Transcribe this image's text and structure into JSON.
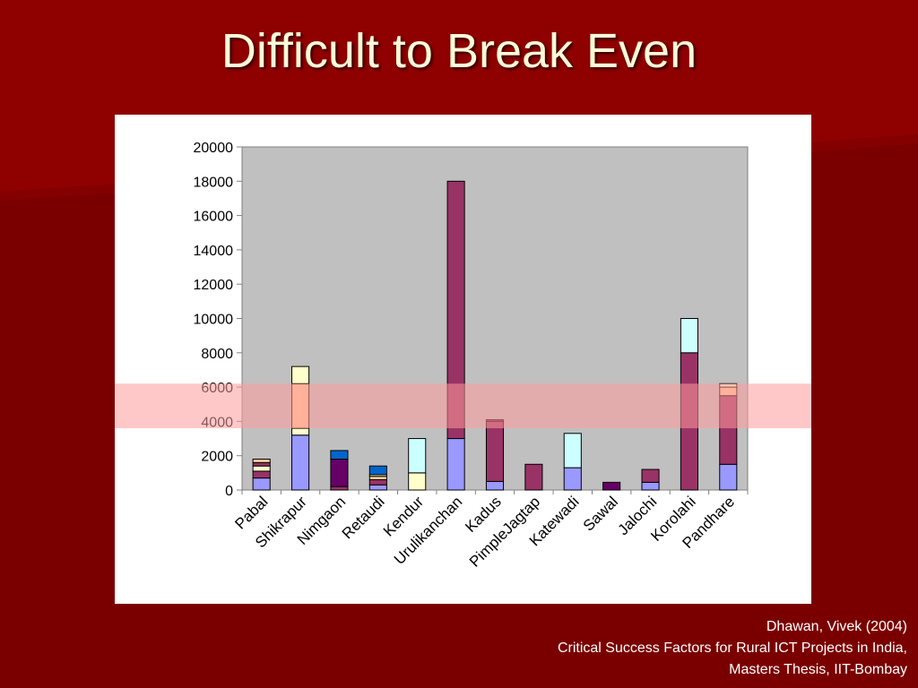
{
  "slide": {
    "title": "Difficult to Break Even",
    "colors": {
      "background": "#7a0000",
      "title": "#fffbd9",
      "highlight_band": "#ff9a9a"
    },
    "citation": {
      "author": "Dhawan, Vivek (2004)",
      "title": "Critical Success Factors for Rural ICT Projects in India,",
      "publisher": "Masters Thesis, IIT-Bombay"
    }
  },
  "chart_data": {
    "type": "bar",
    "stacked": true,
    "title": "",
    "xlabel": "",
    "ylabel": "",
    "ylim": [
      0,
      20000
    ],
    "yticks": [
      0,
      2000,
      4000,
      6000,
      8000,
      10000,
      12000,
      14000,
      16000,
      18000,
      20000
    ],
    "grid": false,
    "plot_background": "#c0c0c0",
    "highlight_band": [
      3600,
      6200
    ],
    "categories": [
      "Pabal",
      "Shikrapur",
      "Nimgaon",
      "Retaudi",
      "Kendur",
      "Urulikanchan",
      "Kadus",
      "PimpleJagtap",
      "Katewadi",
      "Sawal",
      "Jalochi",
      "Korolahi",
      "Pandhare"
    ],
    "stacks": [
      [
        {
          "value": 700,
          "color": "#9999ff"
        },
        {
          "value": 400,
          "color": "#993366"
        },
        {
          "value": 300,
          "color": "#ffffcc"
        },
        {
          "value": 200,
          "color": "#993366"
        },
        {
          "value": 200,
          "color": "#ffcc99"
        }
      ],
      [
        {
          "value": 3200,
          "color": "#9999ff"
        },
        {
          "value": 400,
          "color": "#ffffcc"
        },
        {
          "value": 2600,
          "color": "#ffcc99"
        },
        {
          "value": 1000,
          "color": "#ffffcc"
        }
      ],
      [
        {
          "value": 200,
          "color": "#993366"
        },
        {
          "value": 1600,
          "color": "#660066"
        },
        {
          "value": 500,
          "color": "#0066cc"
        }
      ],
      [
        {
          "value": 300,
          "color": "#9999ff"
        },
        {
          "value": 300,
          "color": "#993366"
        },
        {
          "value": 200,
          "color": "#ffcc99"
        },
        {
          "value": 100,
          "color": "#ffffcc"
        },
        {
          "value": 500,
          "color": "#0066cc"
        }
      ],
      [
        {
          "value": 1000,
          "color": "#ffffcc"
        },
        {
          "value": 2000,
          "color": "#ccffff"
        }
      ],
      [
        {
          "value": 3000,
          "color": "#9999ff"
        },
        {
          "value": 15000,
          "color": "#993366"
        }
      ],
      [
        {
          "value": 500,
          "color": "#9999ff"
        },
        {
          "value": 3500,
          "color": "#993366"
        },
        {
          "value": 100,
          "color": "#cc0066"
        }
      ],
      [
        {
          "value": 1500,
          "color": "#993366"
        }
      ],
      [
        {
          "value": 1300,
          "color": "#9999ff"
        },
        {
          "value": 2000,
          "color": "#ccffff"
        }
      ],
      [
        {
          "value": 450,
          "color": "#660066"
        }
      ],
      [
        {
          "value": 450,
          "color": "#9999ff"
        },
        {
          "value": 750,
          "color": "#993366"
        }
      ],
      [
        {
          "value": 8000,
          "color": "#993366"
        },
        {
          "value": 2000,
          "color": "#ccffff"
        }
      ],
      [
        {
          "value": 1500,
          "color": "#9999ff"
        },
        {
          "value": 4000,
          "color": "#993366"
        },
        {
          "value": 500,
          "color": "#ffcc99"
        },
        {
          "value": 200,
          "color": "#ffffcc"
        }
      ]
    ]
  }
}
